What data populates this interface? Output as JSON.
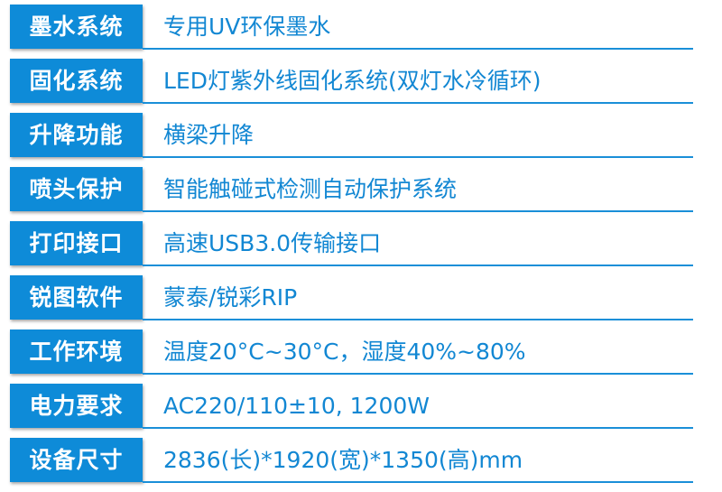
{
  "accent_color": "#0e8bd8",
  "specs": [
    {
      "label": "墨水系统",
      "value": "专用UV环保墨水"
    },
    {
      "label": "固化系统",
      "value": "LED灯紫外线固化系统(双灯水冷循环)"
    },
    {
      "label": "升降功能",
      "value": "横梁升降"
    },
    {
      "label": "喷头保护",
      "value": "智能触碰式检测自动保护系统"
    },
    {
      "label": "打印接口",
      "value": "高速USB3.0传输接口"
    },
    {
      "label": "锐图软件",
      "value": "蒙泰/锐彩RIP"
    },
    {
      "label": "工作环境",
      "value": "温度20°C~30°C，湿度40%~80%"
    },
    {
      "label": "电力要求",
      "value": "AC220/110±10, 1200W"
    },
    {
      "label": "设备尺寸",
      "value": "2836(长)*1920(宽)*1350(高)mm"
    }
  ]
}
